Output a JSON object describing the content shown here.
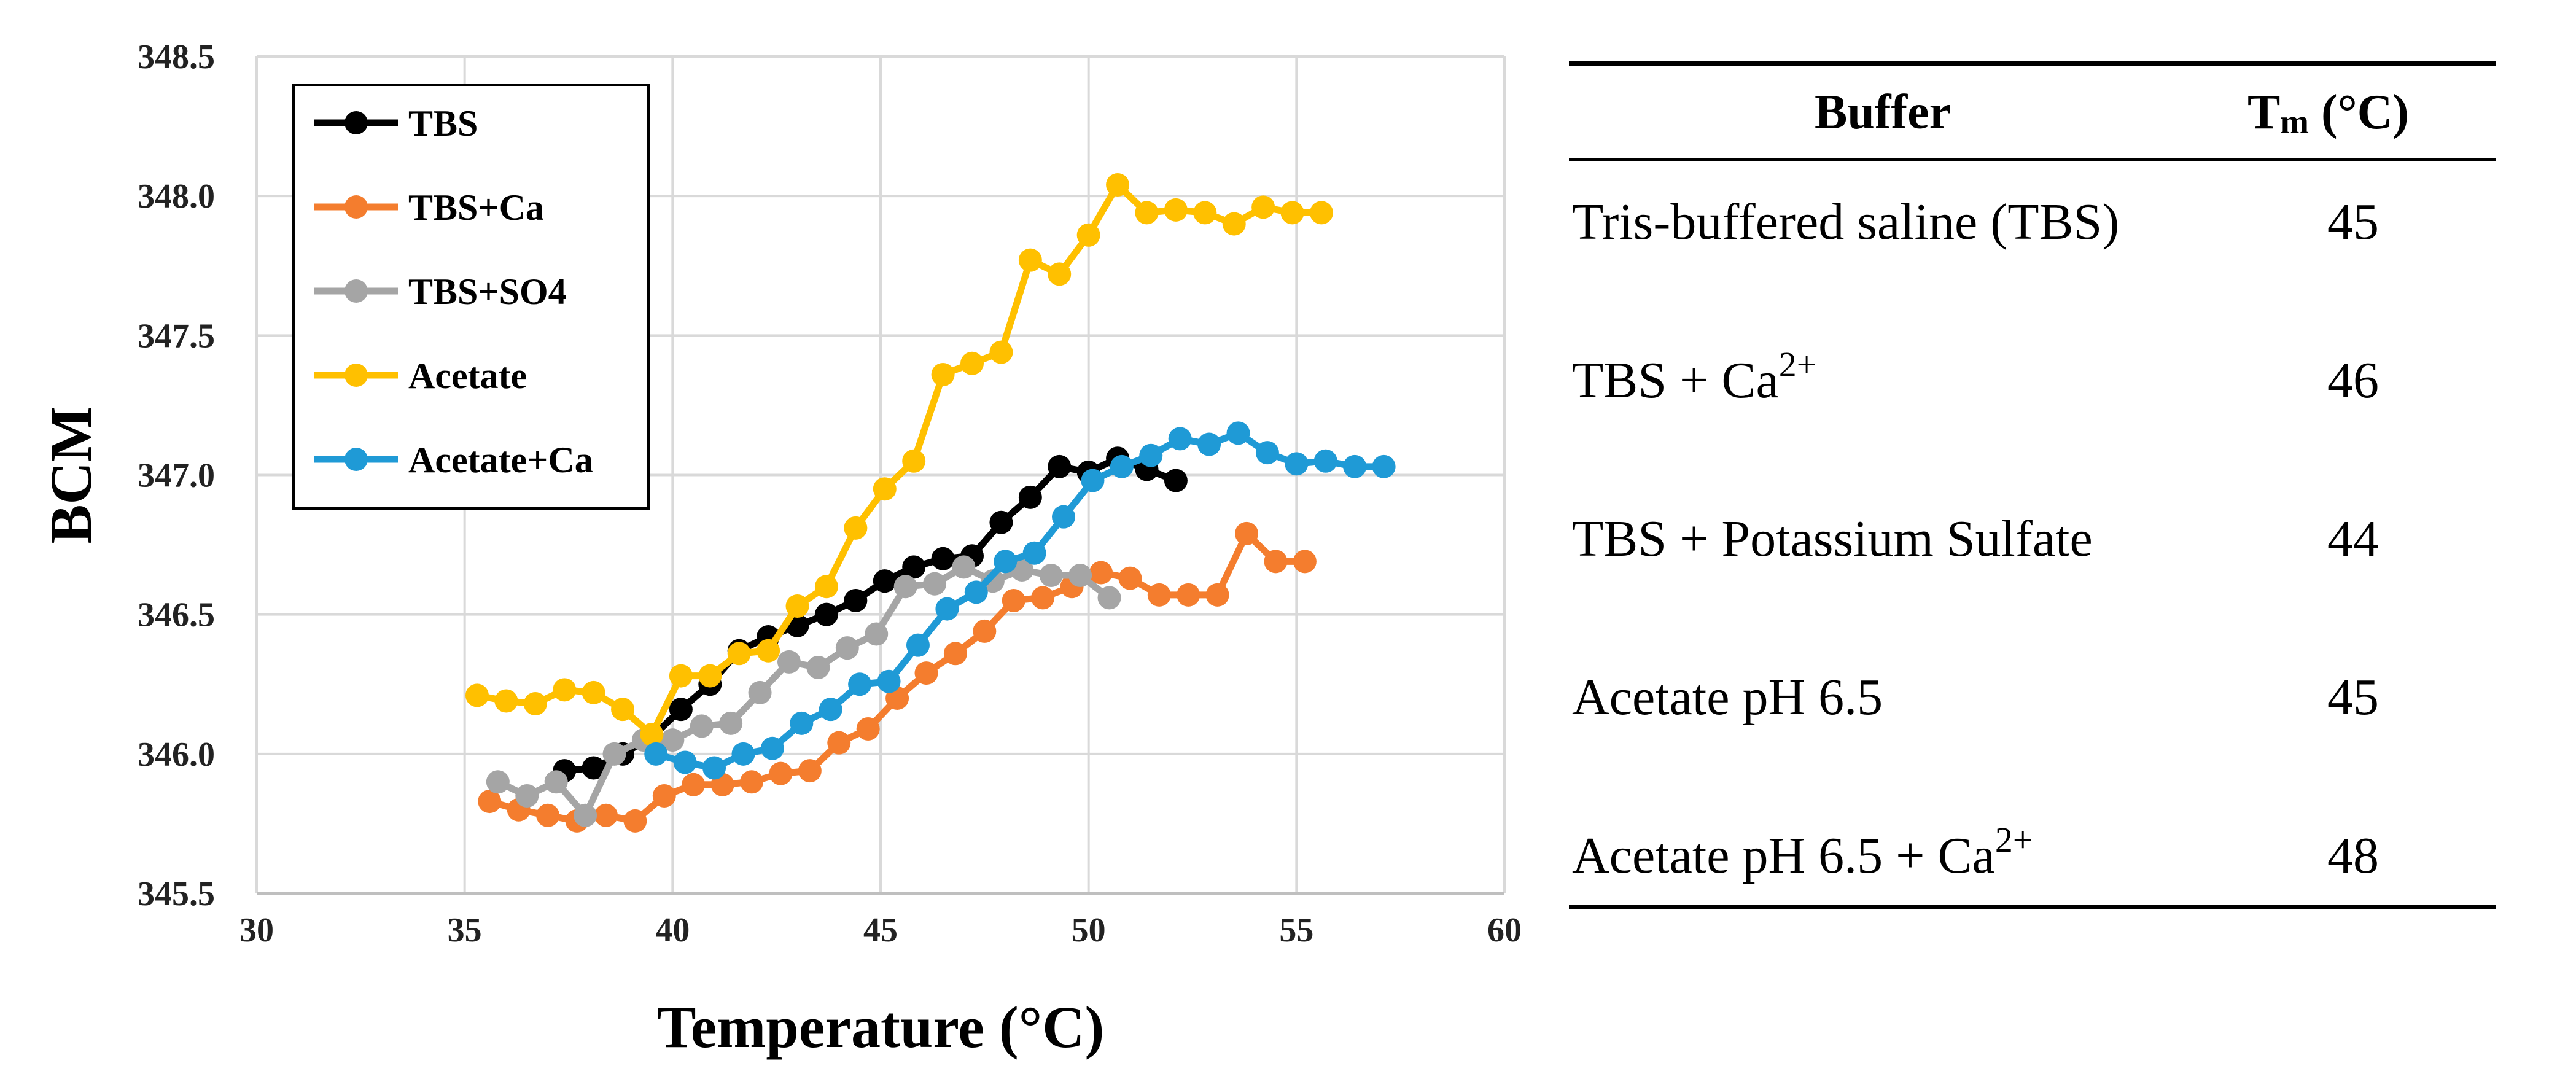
{
  "chart_data": {
    "type": "line",
    "xlabel": "Temperature (°C)",
    "ylabel": "BCM",
    "xlim": [
      30,
      60
    ],
    "ylim": [
      345.5,
      348.5
    ],
    "xticks": [
      30,
      35,
      40,
      45,
      50,
      55,
      60
    ],
    "yticks": [
      345.5,
      346.0,
      346.5,
      347.0,
      347.5,
      348.0,
      348.5
    ],
    "grid": true,
    "legend_position": "top-left",
    "series": [
      {
        "name": "TBS",
        "color": "#000000",
        "x": [
          37.4,
          38.1,
          38.8,
          39.5,
          40.2,
          40.9,
          41.6,
          42.3,
          43.0,
          43.7,
          44.4,
          45.1,
          45.8,
          46.5,
          47.2,
          47.9,
          48.6,
          49.3,
          50.0,
          50.7,
          51.4,
          52.1
        ],
        "y": [
          345.94,
          345.95,
          346.0,
          346.06,
          346.16,
          346.25,
          346.37,
          346.42,
          346.46,
          346.5,
          346.55,
          346.62,
          346.67,
          346.7,
          346.71,
          346.83,
          346.92,
          347.03,
          347.01,
          347.06,
          347.02,
          346.98
        ]
      },
      {
        "name": "TBS+Ca",
        "color": "#f47d2e",
        "x": [
          35.6,
          36.3,
          37.0,
          37.7,
          38.4,
          39.1,
          39.8,
          40.5,
          41.2,
          41.9,
          42.6,
          43.3,
          44.0,
          44.7,
          45.4,
          46.1,
          46.8,
          47.5,
          48.2,
          48.9,
          49.6,
          50.3,
          51.0,
          51.7,
          52.4,
          53.1,
          53.8,
          54.5,
          55.2
        ],
        "y": [
          345.83,
          345.8,
          345.78,
          345.76,
          345.78,
          345.76,
          345.85,
          345.89,
          345.89,
          345.9,
          345.93,
          345.94,
          346.04,
          346.09,
          346.2,
          346.29,
          346.36,
          346.44,
          346.55,
          346.56,
          346.6,
          346.65,
          346.63,
          346.57,
          346.57,
          346.57,
          346.79,
          346.69,
          346.69
        ]
      },
      {
        "name": "TBS+SO4",
        "color": "#a5a5a5",
        "x": [
          35.8,
          36.5,
          37.2,
          37.9,
          38.6,
          39.3,
          40.0,
          40.7,
          41.4,
          42.1,
          42.8,
          43.5,
          44.2,
          44.9,
          45.6,
          46.3,
          47.0,
          47.7,
          48.4,
          49.1,
          49.8,
          50.5
        ],
        "y": [
          345.9,
          345.85,
          345.9,
          345.78,
          346.0,
          346.05,
          346.05,
          346.1,
          346.11,
          346.22,
          346.33,
          346.31,
          346.38,
          346.43,
          346.6,
          346.61,
          346.67,
          346.62,
          346.66,
          346.64,
          346.64,
          346.56
        ]
      },
      {
        "name": "Acetate",
        "color": "#ffc000",
        "x": [
          35.3,
          36.0,
          36.7,
          37.4,
          38.1,
          38.8,
          39.5,
          40.2,
          40.9,
          41.6,
          42.3,
          43.0,
          43.7,
          44.4,
          45.1,
          45.8,
          46.5,
          47.2,
          47.9,
          48.6,
          49.3,
          50.0,
          50.7,
          51.4,
          52.1,
          52.8,
          53.5,
          54.2,
          54.9,
          55.6
        ],
        "y": [
          346.21,
          346.19,
          346.18,
          346.23,
          346.22,
          346.16,
          346.07,
          346.28,
          346.28,
          346.36,
          346.37,
          346.53,
          346.6,
          346.81,
          346.95,
          347.05,
          347.36,
          347.4,
          347.44,
          347.77,
          347.72,
          347.86,
          348.04,
          347.94,
          347.95,
          347.94,
          347.9,
          347.96,
          347.94,
          347.94
        ]
      },
      {
        "name": "Acetate+Ca",
        "color": "#1f9ad6",
        "x": [
          39.6,
          40.3,
          41.0,
          41.7,
          42.4,
          43.1,
          43.8,
          44.5,
          45.2,
          45.9,
          46.6,
          47.3,
          48.0,
          48.7,
          49.4,
          50.1,
          50.8,
          51.5,
          52.2,
          52.9,
          53.6,
          54.3,
          55.0,
          55.7,
          56.4,
          57.1
        ],
        "y": [
          346.0,
          345.97,
          345.95,
          346.0,
          346.02,
          346.11,
          346.16,
          346.25,
          346.26,
          346.39,
          346.52,
          346.58,
          346.69,
          346.72,
          346.85,
          346.98,
          347.03,
          347.07,
          347.13,
          347.11,
          347.15,
          347.08,
          347.04,
          347.05,
          347.03,
          347.03
        ]
      }
    ],
    "tick_labels": {
      "x": [
        "30",
        "35",
        "40",
        "45",
        "50",
        "55",
        "60"
      ],
      "y": [
        "345.5",
        "346.0",
        "346.5",
        "347.0",
        "347.5",
        "348.0",
        "348.5"
      ]
    }
  },
  "table": {
    "header_buffer": "Buffer",
    "header_tm_main": "T",
    "header_tm_sub": "m",
    "header_tm_unit": " (°C)",
    "rows": [
      {
        "buffer": "Tris-buffered saline (TBS)",
        "sup": "",
        "tm": "45"
      },
      {
        "buffer": "TBS + Ca",
        "sup": "2+",
        "tm": "46"
      },
      {
        "buffer": "TBS + Potassium Sulfate",
        "sup": "",
        "tm": "44"
      },
      {
        "buffer": "Acetate pH 6.5",
        "sup": "",
        "tm": "45"
      },
      {
        "buffer": "Acetate pH 6.5 + Ca",
        "sup": "2+",
        "tm": "48"
      }
    ]
  }
}
